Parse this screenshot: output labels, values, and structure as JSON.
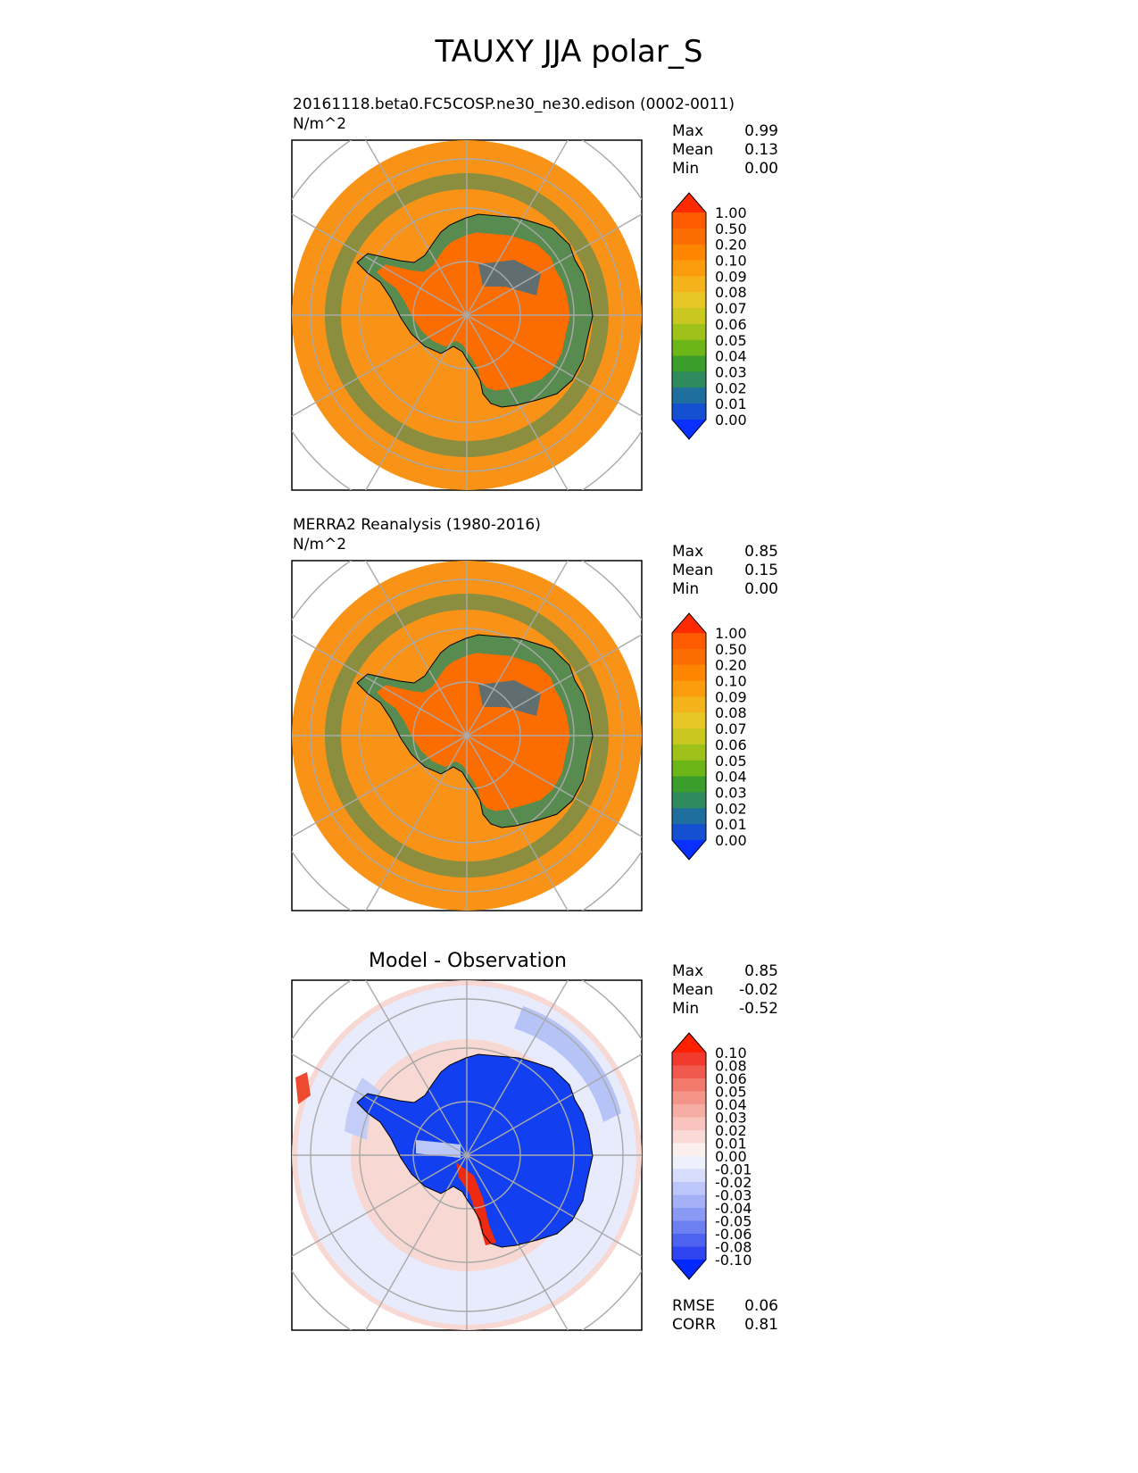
{
  "title": "TAUXY JJA polar_S",
  "chart_data": [
    {
      "type": "heatmap",
      "panel": "test",
      "subtitle": "20161118.beta0.FC5COSP.ne30_ne30.edison (0002-0011)",
      "units": "N/m^2",
      "stats": {
        "max": "0.99",
        "mean": "0.13",
        "min": "0.00"
      },
      "colorbar": {
        "levels": [
          "1.00",
          "0.50",
          "0.20",
          "0.10",
          "0.09",
          "0.08",
          "0.07",
          "0.06",
          "0.05",
          "0.04",
          "0.03",
          "0.02",
          "0.01",
          "0.00"
        ],
        "colors": [
          "#ff2a00",
          "#ff5a00",
          "#fb6d00",
          "#fd8500",
          "#fb9c0e",
          "#f4b21b",
          "#e6c726",
          "#c8c820",
          "#9fc21a",
          "#6db618",
          "#3a9d2c",
          "#2f8a5e",
          "#1f6f9e",
          "#1450d0",
          "#0a30ff"
        ]
      }
    },
    {
      "type": "heatmap",
      "panel": "reference",
      "subtitle": "MERRA2 Reanalysis (1980-2016)",
      "units": "N/m^2",
      "stats": {
        "max": "0.85",
        "mean": "0.15",
        "min": "0.00"
      },
      "colorbar": {
        "levels": [
          "1.00",
          "0.50",
          "0.20",
          "0.10",
          "0.09",
          "0.08",
          "0.07",
          "0.06",
          "0.05",
          "0.04",
          "0.03",
          "0.02",
          "0.01",
          "0.00"
        ],
        "colors": [
          "#ff2a00",
          "#ff5a00",
          "#fb6d00",
          "#fd8500",
          "#fb9c0e",
          "#f4b21b",
          "#e6c726",
          "#c8c820",
          "#9fc21a",
          "#6db618",
          "#3a9d2c",
          "#2f8a5e",
          "#1f6f9e",
          "#1450d0",
          "#0a30ff"
        ]
      }
    },
    {
      "type": "heatmap",
      "panel": "difference",
      "subtitle": "Model - Observation",
      "units": "",
      "stats": {
        "max": "0.85",
        "mean": "-0.02",
        "min": "-0.52",
        "rmse": "0.06",
        "corr": "0.81"
      },
      "colorbar": {
        "levels": [
          "0.10",
          "0.08",
          "0.06",
          "0.05",
          "0.04",
          "0.03",
          "0.02",
          "0.01",
          "0.00",
          "-0.01",
          "-0.02",
          "-0.03",
          "-0.04",
          "-0.05",
          "-0.06",
          "-0.08",
          "-0.10"
        ],
        "colors": [
          "#ff2000",
          "#f03a2e",
          "#f05a4e",
          "#f27a6c",
          "#f4958a",
          "#f6ada4",
          "#f8c4bd",
          "#fadad6",
          "#fcf0ee",
          "#eef0fc",
          "#d6dcfa",
          "#bdc6f8",
          "#a4b1f6",
          "#8a9af4",
          "#6c80f2",
          "#4e62f0",
          "#2e44f0",
          "#0028ff"
        ]
      }
    }
  ],
  "labels": {
    "max": "Max",
    "mean": "Mean",
    "min": "Min",
    "rmse": "RMSE",
    "corr": "CORR"
  }
}
